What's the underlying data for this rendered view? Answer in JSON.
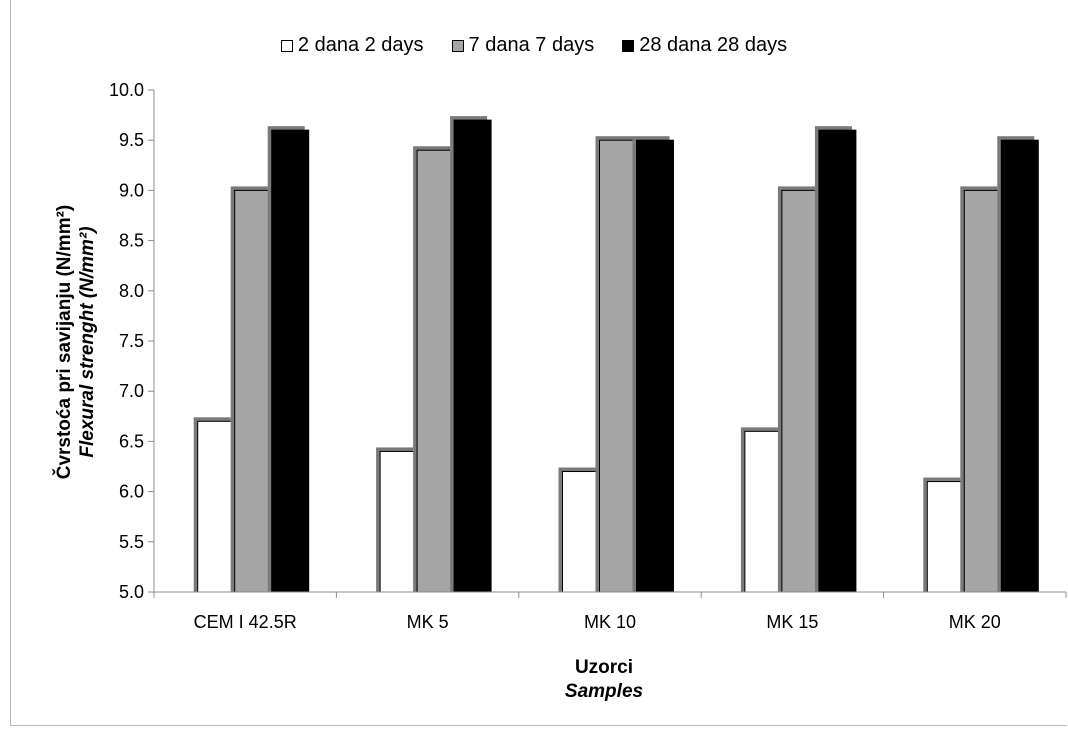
{
  "chart_data": {
    "type": "bar",
    "categories": [
      "CEM I 42.5R",
      "MK 5",
      "MK 10",
      "MK 15",
      "MK 20"
    ],
    "series": [
      {
        "name": "2 dana 2 days",
        "values": [
          6.7,
          6.4,
          6.2,
          6.6,
          6.1
        ],
        "color": "#ffffff"
      },
      {
        "name": "7 dana 7 days",
        "values": [
          9.0,
          9.4,
          9.5,
          9.0,
          9.0
        ],
        "color": "#a6a6a6"
      },
      {
        "name": "28 dana 28 days",
        "values": [
          9.6,
          9.7,
          9.5,
          9.6,
          9.5
        ],
        "color": "#000000"
      }
    ],
    "ylabel_line1": "Čvrstoća pri savijanju (N/mm²)",
    "ylabel_line2": "Flexural strenght (N/mm²)",
    "xlabel_line1": "Uzorci",
    "xlabel_line2": "Samples",
    "ylim": [
      5.0,
      10.0
    ],
    "yticks": [
      "5.0",
      "5.5",
      "6.0",
      "6.5",
      "7.0",
      "7.5",
      "8.0",
      "8.5",
      "9.0",
      "9.5",
      "10.0"
    ],
    "grid": false,
    "legend_position": "top"
  }
}
